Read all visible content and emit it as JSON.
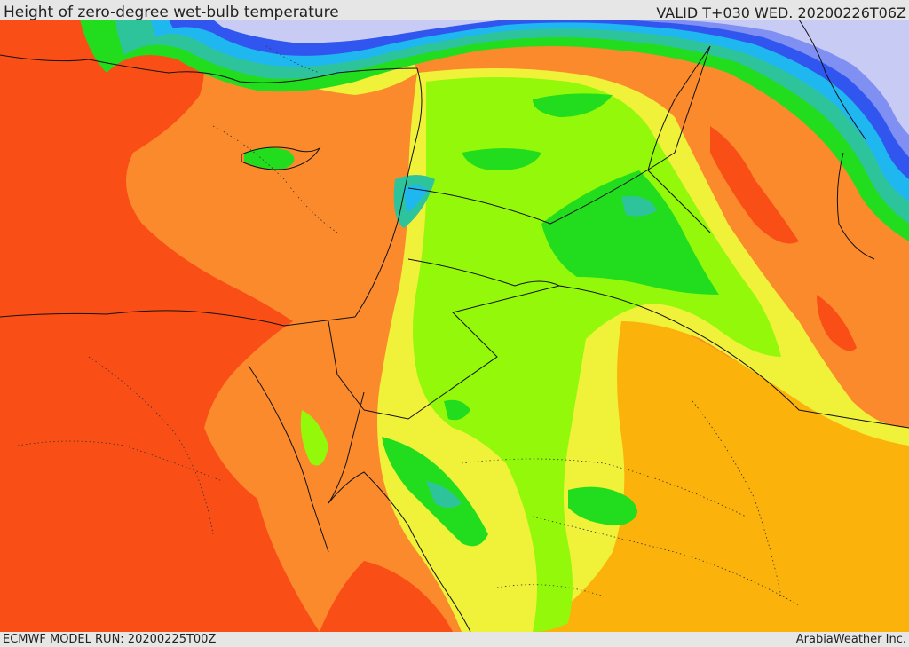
{
  "header": {
    "title": "Height of zero-degree wet-bulb temperature",
    "valid": "VALID T+030 WED. 20200226T06Z"
  },
  "footer": {
    "model_run": "ECMWF MODEL RUN: 20200225T00Z",
    "credit": "ArabiaWeather Inc."
  },
  "colors": {
    "red_orange": "#f94f16",
    "orange": "#fb8a2c",
    "amber": "#fbb30c",
    "yellow": "#f0f23a",
    "lime_yellow": "#cff43a",
    "lime": "#94f80b",
    "green": "#22dd1d",
    "teal": "#2ec49b",
    "cyan": "#1fb7f0",
    "blue": "#3156f0",
    "periwinkle": "#7f8ff2",
    "lavender": "#c8ccf4",
    "border_line": "#111111"
  }
}
